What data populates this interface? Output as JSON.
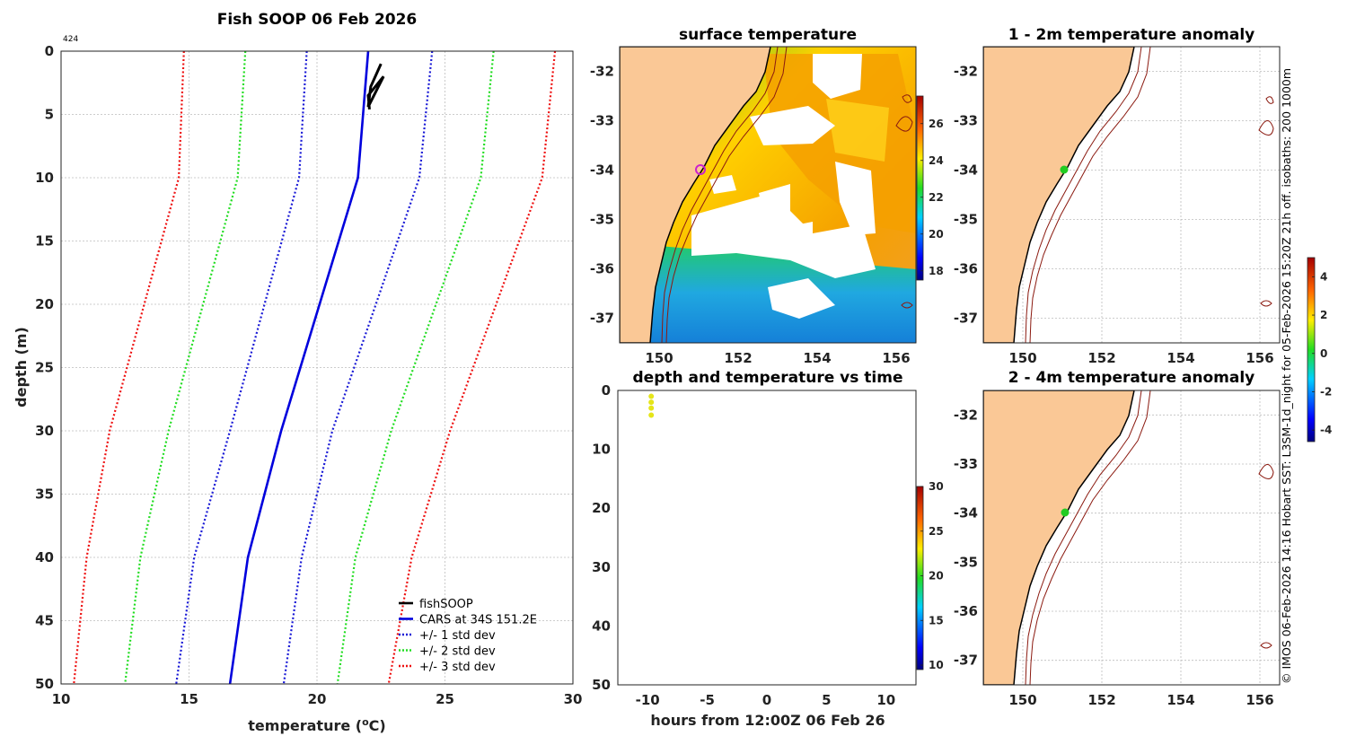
{
  "colors": {
    "land": "#fac896",
    "white": "#ffffff",
    "cars": "#0000dd",
    "fish": "#000000",
    "std1": "#1a1ad6",
    "std2": "#22dd22",
    "std3": "#ee1111",
    "isobath": "#8b1a10",
    "marker": "#22cc22",
    "sst_marker": "#cc22cc"
  },
  "chart_data": [
    {
      "type": "line",
      "title": "Fish SOOP 06 Feb 2026",
      "id_label": "424",
      "xlabel": "temperature (",
      "xlabel_sup": "o",
      "xlabel_end": "C)",
      "ylabel": "depth (m)",
      "xlim": [
        10,
        30
      ],
      "ylim": [
        0,
        50
      ],
      "xticks": [
        "10",
        "15",
        "20",
        "25",
        "30"
      ],
      "yticks": [
        "0",
        "5",
        "10",
        "15",
        "20",
        "25",
        "30",
        "35",
        "40",
        "45",
        "50"
      ],
      "depth": [
        0,
        10,
        30,
        40,
        50
      ],
      "series": [
        {
          "name": "fishSOOP",
          "style": "solid",
          "color": "fish",
          "points": [
            [
              22.5,
              1
            ],
            [
              22.1,
              2.8
            ],
            [
              22.0,
              4.4
            ],
            [
              22.6,
              2.0
            ],
            [
              22.0,
              3.5
            ],
            [
              22.05,
              4.6
            ]
          ]
        },
        {
          "name": "CARS at 34S 151.2E",
          "style": "solid",
          "color": "cars",
          "values": [
            22.0,
            21.6,
            18.6,
            17.3,
            16.6
          ]
        },
        {
          "name": "+/- 1 std dev",
          "style": "dotted",
          "color": "std1",
          "values": [
            19.6,
            19.3,
            16.6,
            15.2,
            14.5
          ]
        },
        {
          "name": "+/- 1 std dev upper",
          "style": "dotted",
          "color": "std1",
          "values": [
            24.5,
            24.0,
            20.6,
            19.4,
            18.7
          ]
        },
        {
          "name": "+/- 2 std dev",
          "style": "dotted",
          "color": "std2",
          "values": [
            17.2,
            16.9,
            14.2,
            13.1,
            12.5
          ]
        },
        {
          "name": "+/- 2 std dev upper",
          "style": "dotted",
          "color": "std2",
          "values": [
            26.9,
            26.4,
            22.9,
            21.5,
            20.8
          ]
        },
        {
          "name": "+/- 3 std dev",
          "style": "dotted",
          "color": "std3",
          "values": [
            14.8,
            14.6,
            11.9,
            11.0,
            10.5
          ]
        },
        {
          "name": "+/- 3 std dev upper",
          "style": "dotted",
          "color": "std3",
          "values": [
            29.3,
            28.8,
            25.2,
            23.7,
            22.8
          ]
        }
      ],
      "legend": [
        "fishSOOP",
        "CARS at 34S 151.2E",
        "+/- 1 std dev",
        "+/- 2 std dev",
        "+/- 3 std dev"
      ],
      "legend_position": "bottom-right"
    },
    {
      "type": "heatmap",
      "title": "surface temperature",
      "xticks": [
        "150",
        "152",
        "154",
        "156"
      ],
      "yticks": [
        "-32",
        "-33",
        "-34",
        "-35",
        "-36",
        "-37"
      ],
      "xlim": [
        149.0,
        156.5
      ],
      "ylim": [
        -37.5,
        -31.5
      ],
      "colorbar_ticks": [
        "26",
        "24",
        "22",
        "20",
        "18"
      ],
      "colorbar_range": [
        17.5,
        27.5
      ]
    },
    {
      "type": "scatter",
      "title": "depth and temperature vs time",
      "xlabel": "hours from 12:00Z 06 Feb 26",
      "xticks": [
        "-10",
        "-5",
        "0",
        "5",
        "10"
      ],
      "yticks": [
        "0",
        "10",
        "20",
        "30",
        "40",
        "50"
      ],
      "xlim": [
        -12.5,
        12.5
      ],
      "ylim": [
        0,
        50
      ],
      "points": [
        [
          -9.7,
          1.0
        ],
        [
          -9.7,
          2.0
        ],
        [
          -9.7,
          3.0
        ],
        [
          -9.7,
          4.2
        ]
      ],
      "colorbar_ticks": [
        "30",
        "25",
        "20",
        "15",
        "10"
      ],
      "colorbar_range": [
        9.5,
        30
      ]
    },
    {
      "type": "heatmap",
      "title": "1 - 2m temperature anomaly",
      "xticks": [
        "150",
        "152",
        "154",
        "156"
      ],
      "yticks": [
        "-32",
        "-33",
        "-34",
        "-35",
        "-36",
        "-37"
      ],
      "xlim": [
        149.0,
        156.5
      ],
      "ylim": [
        -37.5,
        -31.5
      ],
      "marker": [
        151.2,
        -34.0
      ]
    },
    {
      "type": "heatmap",
      "title": "2 - 4m temperature anomaly",
      "xticks": [
        "150",
        "152",
        "154",
        "156"
      ],
      "yticks": [
        "-32",
        "-33",
        "-34",
        "-35",
        "-36",
        "-37"
      ],
      "xlim": [
        149.0,
        156.5
      ],
      "ylim": [
        -37.5,
        -31.5
      ],
      "marker": [
        151.2,
        -34.0
      ],
      "colorbar_ticks": [
        "4",
        "2",
        "0",
        "-2",
        "-4"
      ],
      "colorbar_range": [
        -4.6,
        5.0
      ]
    }
  ],
  "side_note": "© IMOS 06-Feb-2026 14:16 Hobart SST: L3SM-1d_night for 05-Feb-2026 15:20Z 21h off. isobaths: 200  1000m"
}
